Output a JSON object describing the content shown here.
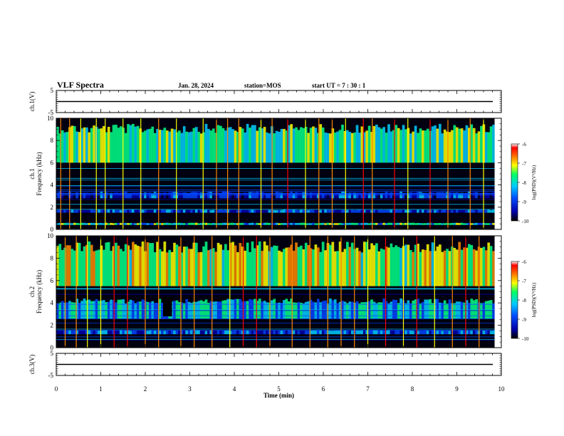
{
  "header": {
    "title": "VLF Spectra",
    "date": "Jan. 28, 2024",
    "station": "station=MOS",
    "start": "start UT =  7 : 30 : 1"
  },
  "colors": {
    "background": "#000000",
    "axis": "#000000",
    "trace": "#000000",
    "colormap": [
      "#000033",
      "#0000aa",
      "#0044ff",
      "#00ccff",
      "#00ff88",
      "#ffff00",
      "#ff8800",
      "#ff0000",
      "#ffffff"
    ]
  },
  "chart_data": [
    {
      "type": "line",
      "panel": "ch1-waveform",
      "ylabel": "ch.1(V)",
      "ylim": [
        -5,
        5
      ],
      "yticks": [
        {
          "v": 5,
          "label": "5"
        },
        {
          "v": -5,
          "label": "-5"
        }
      ],
      "trace_level": 0,
      "xlim": [
        0,
        10
      ]
    },
    {
      "type": "heatmap",
      "panel": "ch1-spectrogram",
      "ylabel": "ch.1\nFrequency (kHz)",
      "ylim": [
        0,
        10
      ],
      "yticks": [
        {
          "v": 0,
          "label": "0"
        },
        {
          "v": 2,
          "label": "2"
        },
        {
          "v": 4,
          "label": "4"
        },
        {
          "v": 6,
          "label": "6"
        },
        {
          "v": 8,
          "label": "8"
        },
        {
          "v": 10,
          "label": "10"
        }
      ],
      "xlim": [
        0,
        10
      ],
      "data_end": 9.85,
      "colorbar": {
        "label": "log(PSD)(V²/Hz)",
        "range": [
          -10,
          -6
        ],
        "ticks": [
          {
            "v": -6,
            "label": "-6"
          },
          {
            "v": -7,
            "label": "-7"
          },
          {
            "v": -8,
            "label": "-8"
          },
          {
            "v": -9,
            "label": "-9"
          },
          {
            "v": -10,
            "label": "-10"
          }
        ]
      },
      "bands": [
        {
          "lo": 6.0,
          "hi": 9.5,
          "level": 0.55
        },
        {
          "lo": 2.8,
          "hi": 3.4,
          "level": 0.25
        },
        {
          "lo": 1.5,
          "hi": 1.8,
          "level": 0.3
        },
        {
          "lo": 0.4,
          "hi": 0.6,
          "level": 0.5
        }
      ],
      "spikes": [
        0.1,
        0.3,
        0.55,
        0.9,
        1.1,
        1.5,
        1.9,
        2.3,
        2.7,
        3.3,
        3.6,
        3.85,
        4.1,
        4.6,
        4.85,
        5.2,
        5.6,
        5.9,
        6.2,
        6.5,
        6.9,
        7.1,
        7.6,
        7.9,
        8.4,
        8.8,
        9.3,
        9.6
      ]
    },
    {
      "type": "heatmap",
      "panel": "ch2-spectrogram",
      "ylabel": "ch.2\nFrequency (kHz)",
      "ylim": [
        0,
        10
      ],
      "yticks": [
        {
          "v": 0,
          "label": "0"
        },
        {
          "v": 2,
          "label": "2"
        },
        {
          "v": 4,
          "label": "4"
        },
        {
          "v": 6,
          "label": "6"
        },
        {
          "v": 8,
          "label": "8"
        },
        {
          "v": 10,
          "label": "10"
        }
      ],
      "xlim": [
        0,
        10
      ],
      "data_end": 9.85,
      "colorbar": {
        "label": "log(PSD)(V²/Hz)",
        "range": [
          -10,
          -6
        ],
        "ticks": [
          {
            "v": -6,
            "label": "-6"
          },
          {
            "v": -7,
            "label": "-7"
          },
          {
            "v": -8,
            "label": "-8"
          },
          {
            "v": -9,
            "label": "-9"
          },
          {
            "v": -10,
            "label": "-10"
          }
        ]
      },
      "bands": [
        {
          "lo": 5.5,
          "hi": 9.5,
          "level": 0.65
        },
        {
          "lo": 2.6,
          "hi": 4.4,
          "level": 0.45
        },
        {
          "lo": 1.2,
          "hi": 1.6,
          "level": 0.3
        }
      ],
      "gap": {
        "x0": 2.4,
        "x1": 2.6,
        "lo": 2.8,
        "hi": 4.5
      },
      "spikes": [
        0.2,
        0.45,
        0.7,
        1.0,
        1.3,
        1.6,
        2.0,
        2.3,
        2.8,
        3.1,
        3.5,
        3.9,
        4.2,
        4.5,
        4.8,
        5.3,
        5.7,
        6.1,
        6.4,
        6.7,
        7.0,
        7.4,
        7.8,
        8.1,
        8.5,
        8.9,
        9.2,
        9.5
      ]
    },
    {
      "type": "line",
      "panel": "ch3-waveform",
      "ylabel": "ch.3(V)",
      "ylim": [
        -5,
        5
      ],
      "yticks": [
        {
          "v": 5,
          "label": "5"
        },
        {
          "v": -5,
          "label": "-5"
        }
      ],
      "trace_level": 0,
      "xlim": [
        0,
        10
      ],
      "xlabel": "Time (min)",
      "xticks": [
        {
          "v": 0,
          "label": "0"
        },
        {
          "v": 1,
          "label": "1"
        },
        {
          "v": 2,
          "label": "2"
        },
        {
          "v": 3,
          "label": "3"
        },
        {
          "v": 4,
          "label": "4"
        },
        {
          "v": 5,
          "label": "5"
        },
        {
          "v": 6,
          "label": "6"
        },
        {
          "v": 7,
          "label": "7"
        },
        {
          "v": 8,
          "label": "8"
        },
        {
          "v": 9,
          "label": "9"
        },
        {
          "v": 10,
          "label": "10"
        }
      ]
    }
  ]
}
